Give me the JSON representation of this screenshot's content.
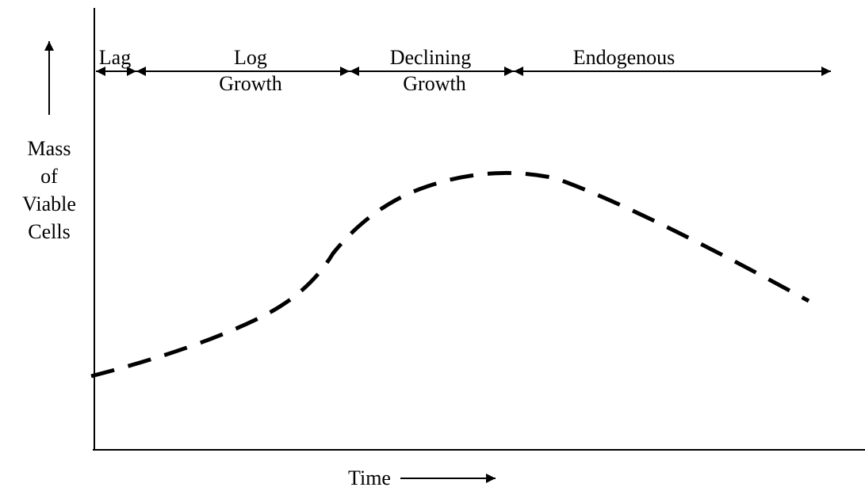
{
  "phases": [
    {
      "label": [
        "Lag"
      ]
    },
    {
      "label": [
        "Log",
        "Growth"
      ]
    },
    {
      "label": [
        "Declining",
        "Growth"
      ]
    },
    {
      "label": [
        "Endogenous"
      ]
    }
  ],
  "y_axis_label": [
    "Mass",
    "of",
    "Viable",
    "Cells"
  ],
  "x_axis_label": "Time"
}
